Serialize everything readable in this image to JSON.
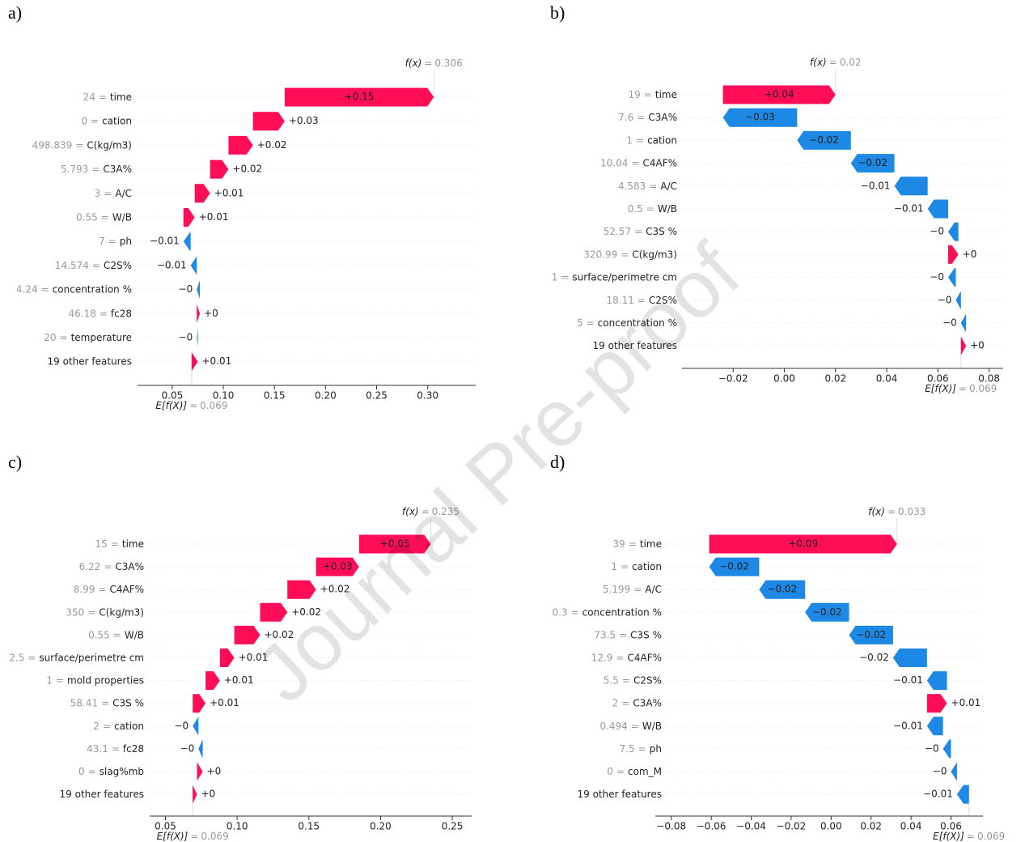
{
  "watermark": "Journal Pre-proof",
  "chart_data": [
    {
      "type": "waterfall",
      "panel": "a)",
      "separator": "=",
      "fx_label": "f(x)",
      "fx": 0.306,
      "expected_label": "E[f(X)]",
      "expected": 0.069,
      "feature_values": [
        "24",
        "0",
        "498.839",
        "5.793",
        "3",
        "0.55",
        "7",
        "14.574",
        "4.24",
        "46.18",
        "20",
        null
      ],
      "feature_names": [
        "time",
        "cation",
        "C(kg/m3)",
        "C3A%",
        "A/C",
        "W/B",
        "ph",
        "C2S%",
        "concentration %",
        "fc28",
        "temperature",
        "19 other features"
      ],
      "values": [
        0.146,
        0.031,
        0.024,
        0.018,
        0.015,
        0.011,
        -0.007,
        -0.006,
        -0.003,
        0.003,
        -0.001,
        0.006
      ],
      "value_labels": [
        "+0.15",
        "+0.03",
        "+0.02",
        "+0.02",
        "+0.01",
        "+0.01",
        "−0.01",
        "−0.01",
        "−0",
        "+0",
        "−0",
        "+0.01"
      ],
      "colors": {
        "positive": "#ff0d57",
        "negative": "#1e88e5"
      },
      "xlim": [
        0.016,
        0.347
      ],
      "xticks": [
        0.05,
        {
          "value": 0.1,
          "label": "0.10"
        },
        0.15,
        {
          "value": 0.2,
          "label": "0.20"
        },
        0.25,
        {
          "value": 0.3,
          "label": "0.30"
        }
      ]
    },
    {
      "type": "waterfall",
      "panel": "b)",
      "separator": "=",
      "fx_label": "f(x)",
      "fx": 0.02,
      "expected_label": "E[f(X)]",
      "expected": 0.069,
      "feature_values": [
        "19",
        "7.6",
        "1",
        "10.04",
        "4.583",
        "0.5",
        "52.57",
        "320.99",
        "1",
        "18.11",
        "5",
        null
      ],
      "feature_names": [
        "time",
        "C3A%",
        "cation",
        "C4AF%",
        "A/C",
        "W/B",
        "C3S %",
        "C(kg/m3)",
        "surface/perimetre cm",
        "C2S%",
        "concentration %",
        "19 other features"
      ],
      "values": [
        0.044,
        -0.029,
        -0.021,
        -0.017,
        -0.013,
        -0.008,
        -0.004,
        0.004,
        -0.003,
        -0.002,
        -0.002,
        0.002
      ],
      "value_labels": [
        "+0.04",
        "−0.03",
        "−0.02",
        "−0.02",
        "−0.01",
        "−0.01",
        "−0",
        "+0",
        "−0",
        "−0",
        "−0",
        "+0"
      ],
      "colors": {
        "positive": "#ff0d57",
        "negative": "#1e88e5"
      },
      "xlim": [
        -0.04,
        0.0855
      ],
      "xticks": [
        {
          "value": -0.02,
          "label": "−0.02"
        },
        {
          "value": 0,
          "label": "0.00"
        },
        0.02,
        0.04,
        0.06,
        0.08
      ]
    },
    {
      "type": "waterfall",
      "panel": "c)",
      "separator": "=",
      "fx_label": "f(x)",
      "fx": 0.235,
      "expected_label": "E[f(X)]",
      "expected": 0.069,
      "feature_values": [
        "15",
        "6.22",
        "8.99",
        "350",
        "0.55",
        "2.5",
        "1",
        "58.41",
        "2",
        "43.1",
        "0",
        null
      ],
      "feature_names": [
        "time",
        "C3A%",
        "C4AF%",
        "C(kg/m3)",
        "W/B",
        "surface/perimetre cm",
        "mold properties",
        "C3S %",
        "cation",
        "fc28",
        "slag%mb",
        "19 other features"
      ],
      "values": [
        0.05,
        0.03,
        0.02,
        0.019,
        0.018,
        0.01,
        0.01,
        0.009,
        -0.004,
        -0.003,
        0.004,
        0.003
      ],
      "value_labels": [
        "+0.05",
        "+0.03",
        "+0.02",
        "+0.02",
        "+0.02",
        "+0.01",
        "+0.01",
        "+0.01",
        "−0",
        "−0",
        "+0",
        "+0"
      ],
      "colors": {
        "positive": "#ff0d57",
        "negative": "#1e88e5"
      },
      "xlim": [
        0.039,
        0.2635
      ],
      "xticks": [
        0.05,
        {
          "value": 0.1,
          "label": "0.10"
        },
        0.15,
        {
          "value": 0.2,
          "label": "0.20"
        },
        0.25
      ]
    },
    {
      "type": "waterfall",
      "panel": "d)",
      "separator": "=",
      "fx_label": "f(x)",
      "fx": 0.033,
      "expected_label": "E[f(X)]",
      "expected": 0.069,
      "feature_values": [
        "39",
        "1",
        "5.199",
        "0.3",
        "73.5",
        "12.9",
        "5.5",
        "2",
        "0.494",
        "7.5",
        "0",
        null
      ],
      "feature_names": [
        "time",
        "cation",
        "A/C",
        "concentration %",
        "C3S %",
        "C4AF%",
        "C2S%",
        "C3A%",
        "W/B",
        "ph",
        "com_M",
        "19 other features"
      ],
      "values": [
        0.094,
        -0.025,
        -0.023,
        -0.022,
        -0.022,
        -0.017,
        -0.01,
        0.01,
        -0.008,
        -0.004,
        -0.003,
        -0.006
      ],
      "value_labels": [
        "+0.09",
        "−0.02",
        "−0.02",
        "−0.02",
        "−0.02",
        "−0.02",
        "−0.01",
        "+0.01",
        "−0.01",
        "−0",
        "−0",
        "−0.01"
      ],
      "colors": {
        "positive": "#ff0d57",
        "negative": "#1e88e5"
      },
      "xlim": [
        -0.088,
        0.076
      ],
      "xticks": [
        {
          "value": -0.08,
          "label": "−0.08"
        },
        {
          "value": -0.06,
          "label": "−0.06"
        },
        {
          "value": -0.04,
          "label": "−0.04"
        },
        {
          "value": -0.02,
          "label": "−0.02"
        },
        {
          "value": 0,
          "label": "0.00"
        },
        0.02,
        0.04,
        0.06
      ]
    }
  ]
}
